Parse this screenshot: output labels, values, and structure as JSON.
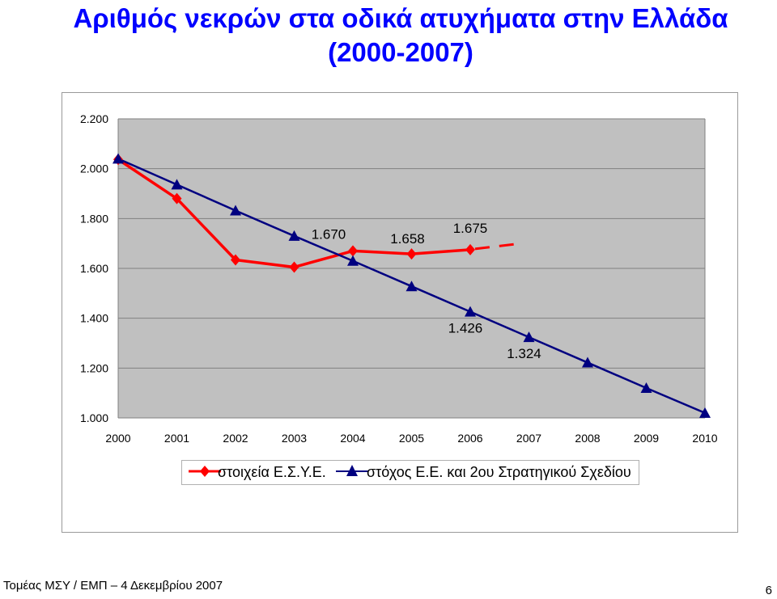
{
  "title_line1": "Αριθμός νεκρών στα οδικά ατυχήματα στην Ελλάδα",
  "title_line2": "(2000-2007)",
  "footer": "Τομέας ΜΣΥ / ΕΜΠ – 4 Δεκεμβρίου 2007",
  "page_number": "6",
  "chart_data": {
    "type": "line",
    "x": [
      2000,
      2001,
      2002,
      2003,
      2004,
      2005,
      2006,
      2007,
      2008,
      2009,
      2010
    ],
    "x_tick_labels": [
      "2000",
      "2001",
      "2002",
      "2003",
      "2004",
      "2005",
      "2006",
      "2007",
      "2008",
      "2009",
      "2010"
    ],
    "y_tick_values": [
      1000,
      1200,
      1400,
      1600,
      1800,
      2000,
      2200
    ],
    "y_tick_labels": [
      "1.000",
      "1.200",
      "1.400",
      "1.600",
      "1.800",
      "2.000",
      "2.200"
    ],
    "ylim": [
      1000,
      2200
    ],
    "xlim": [
      2000,
      2010
    ],
    "grid": "horizontal",
    "plot_background": "#c0c0c0",
    "legend_position": "bottom",
    "series": [
      {
        "name": "στοιχεία Ε.Σ.Υ.Ε.",
        "color": "#ff0000",
        "marker": "diamond",
        "x": [
          2000,
          2001,
          2002,
          2003,
          2004,
          2005,
          2006
        ],
        "values": [
          2037,
          1880,
          1634,
          1605,
          1670,
          1658,
          1675
        ]
      },
      {
        "name": "στόχος Ε.Ε. και 2ου Στρατηγικού Σχεδίου",
        "color": "#000080",
        "marker": "triangle",
        "x": [
          2000,
          2001,
          2002,
          2003,
          2004,
          2005,
          2006,
          2007,
          2008,
          2009,
          2010
        ],
        "values": [
          2040,
          1936,
          1832,
          1730,
          1630,
          1528,
          1426,
          1324,
          1222,
          1120,
          1020
        ]
      }
    ],
    "projection": {
      "series": "στοιχεία Ε.Σ.Υ.Ε.",
      "style": "dashed",
      "color": "#ff0000",
      "x": [
        2006,
        2007
      ],
      "values": [
        1675,
        1700
      ]
    },
    "annotations": [
      {
        "text": "1.670",
        "x": 2004,
        "y": 1670,
        "placement": "above-left"
      },
      {
        "text": "1.658",
        "x": 2005,
        "y": 1658,
        "placement": "above"
      },
      {
        "text": "1.675",
        "x": 2006,
        "y": 1675,
        "placement": "above"
      },
      {
        "text": "1.426",
        "x": 2006,
        "y": 1426,
        "placement": "below-left"
      },
      {
        "text": "1.324",
        "x": 2007,
        "y": 1324,
        "placement": "below-left"
      }
    ]
  }
}
